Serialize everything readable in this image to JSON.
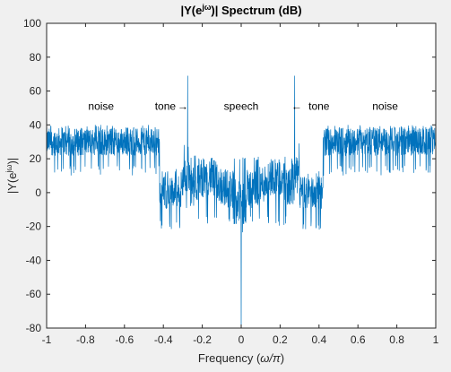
{
  "chart_data": {
    "type": "line",
    "title_prefix": "|Y(e",
    "title_sup": "jω",
    "title_suffix": ")| Spectrum (dB)",
    "xlabel_prefix": "Frequency (",
    "xlabel_math": "ω/π",
    "xlabel_suffix": ")",
    "ylabel_prefix": "|Y(e",
    "ylabel_sup": "jω",
    "ylabel_suffix": ")|",
    "xlim": [
      -1,
      1
    ],
    "ylim": [
      -80,
      100
    ],
    "xticks": [
      -1,
      -0.8,
      -0.6,
      -0.4,
      -0.2,
      0,
      0.2,
      0.4,
      0.6,
      0.8,
      1
    ],
    "xtick_labels": [
      "-1",
      "-0.8",
      "-0.6",
      "-0.4",
      "-0.2",
      "0",
      "0.2",
      "0.4",
      "0.6",
      "0.8",
      "1"
    ],
    "yticks": [
      -80,
      -60,
      -40,
      -20,
      0,
      20,
      40,
      60,
      80,
      100
    ],
    "ytick_labels": [
      "-80",
      "-60",
      "-40",
      "-20",
      "0",
      "20",
      "40",
      "60",
      "80",
      "100"
    ],
    "grid": false,
    "series_color": "#0072BD",
    "series": [
      {
        "envelope": [
          {
            "x_range": [
              -1.0,
              -0.42
            ],
            "mean_db": 30,
            "upper_db": 40,
            "lower_db": 10
          },
          {
            "x_range": [
              -0.42,
              -0.28
            ],
            "mean_db": 0,
            "upper_db": 15,
            "lower_db": -22
          },
          {
            "x_range": [
              -0.25,
              -0.02
            ],
            "mean_db": 2,
            "upper_db": 20,
            "lower_db": -20
          },
          {
            "x_range": [
              0.02,
              0.25
            ],
            "mean_db": 2,
            "upper_db": 20,
            "lower_db": -20
          },
          {
            "x_range": [
              0.28,
              0.42
            ],
            "mean_db": 0,
            "upper_db": 15,
            "lower_db": -22
          },
          {
            "x_range": [
              0.42,
              1.0
            ],
            "mean_db": 30,
            "upper_db": 40,
            "lower_db": 10
          }
        ],
        "peaks": [
          {
            "x": -0.275,
            "y": 69
          },
          {
            "x": 0.275,
            "y": 69
          },
          {
            "x": 0.0,
            "y": -80
          }
        ]
      }
    ],
    "annotations": [
      {
        "text": "noise",
        "x": -0.72,
        "y": 49
      },
      {
        "text": "tone",
        "x": -0.39,
        "y": 49
      },
      {
        "text": "→",
        "x": -0.3,
        "y": 49
      },
      {
        "text": "speech",
        "x": 0.0,
        "y": 49
      },
      {
        "text": "←",
        "x": 0.285,
        "y": 49
      },
      {
        "text": "tone",
        "x": 0.4,
        "y": 49
      },
      {
        "text": "noise",
        "x": 0.74,
        "y": 49
      }
    ]
  }
}
